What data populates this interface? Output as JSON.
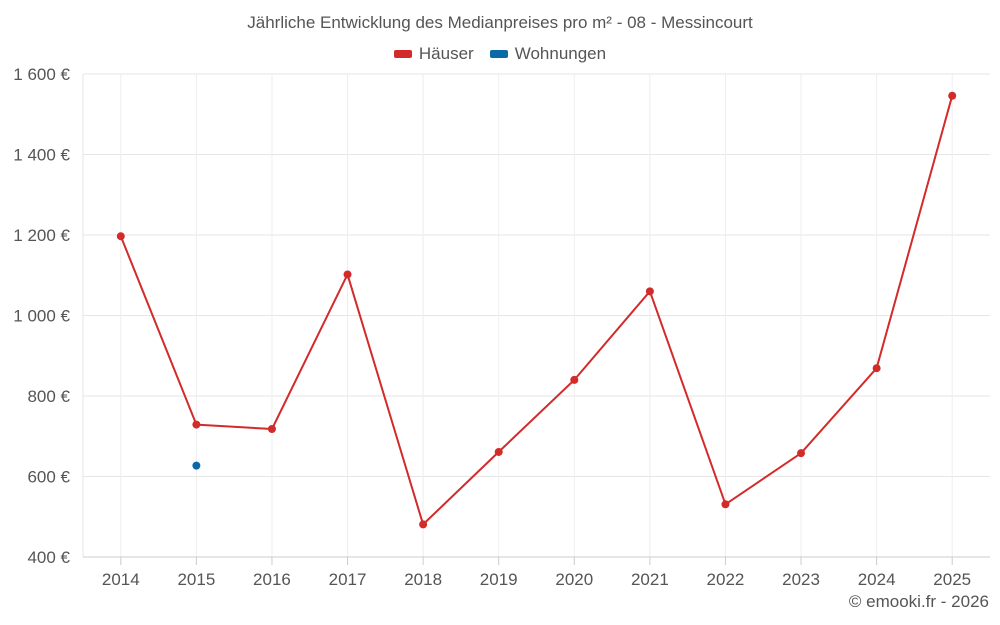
{
  "chart_data": {
    "type": "line",
    "title": "Jährliche Entwicklung des Medianpreises pro m² - 08 - Messincourt",
    "categories": [
      "2014",
      "2015",
      "2016",
      "2017",
      "2018",
      "2019",
      "2020",
      "2021",
      "2022",
      "2023",
      "2024",
      "2025"
    ],
    "ylim": [
      400,
      1600
    ],
    "yticks": [
      400,
      600,
      800,
      1000,
      1200,
      1400,
      1600
    ],
    "ytick_labels": [
      "400 €",
      "600 €",
      "800 €",
      "1 000 €",
      "1 200 €",
      "1 400 €",
      "1 600 €"
    ],
    "grid": true,
    "legend_position": "top-center",
    "series": [
      {
        "name": "Häuser",
        "color": "#d32a2a",
        "values": [
          1197,
          729,
          718,
          1102,
          481,
          661,
          840,
          1060,
          531,
          658,
          869,
          1546
        ]
      },
      {
        "name": "Wohnungen",
        "color": "#0a6aa8",
        "values": [
          null,
          627,
          null,
          null,
          null,
          null,
          null,
          null,
          null,
          null,
          null,
          null
        ]
      }
    ]
  },
  "credit": "© emooki.fr - 2026"
}
